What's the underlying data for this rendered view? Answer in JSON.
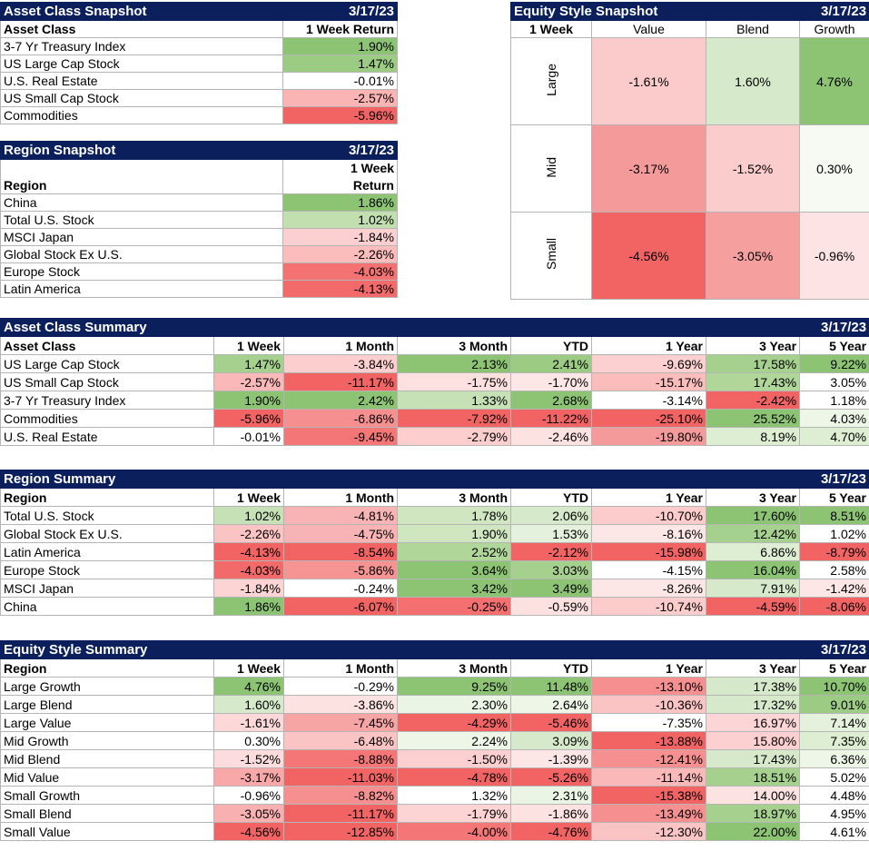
{
  "date": "3/17/23",
  "asset_snapshot": {
    "title": "Asset Class Snapshot",
    "col1": "Asset Class",
    "col2": "1 Week Return",
    "rows": [
      {
        "name": "3-7 Yr Treasury Index",
        "value": "1.90%",
        "color": "#8cc474"
      },
      {
        "name": "US Large Cap Stock",
        "value": "1.47%",
        "color": "#9ccc84"
      },
      {
        "name": "U.S. Real Estate",
        "value": "-0.01%",
        "color": "#ffffff"
      },
      {
        "name": "US Small Cap Stock",
        "value": "-2.57%",
        "color": "#fbb4b4"
      },
      {
        "name": "Commodities",
        "value": "-5.96%",
        "color": "#f26464"
      }
    ]
  },
  "region_snapshot": {
    "title": "Region Snapshot",
    "col1": "Region",
    "col2a": "1 Week",
    "col2b": "Return",
    "rows": [
      {
        "name": "China",
        "value": "1.86%",
        "color": "#8cc474"
      },
      {
        "name": "Total U.S. Stock",
        "value": "1.02%",
        "color": "#c2dfb0"
      },
      {
        "name": "MSCI Japan",
        "value": "-1.84%",
        "color": "#fcd0d0"
      },
      {
        "name": "Global Stock Ex U.S.",
        "value": "-2.26%",
        "color": "#fbbcbc"
      },
      {
        "name": "Europe Stock",
        "value": "-4.03%",
        "color": "#f47272"
      },
      {
        "name": "Latin America",
        "value": "-4.13%",
        "color": "#f26a6a"
      }
    ]
  },
  "style_snapshot": {
    "title": "Equity Style Snapshot",
    "corner": "1 Week",
    "cols": [
      "Value",
      "Blend",
      "Growth"
    ],
    "rows": [
      {
        "label": "Large",
        "cells": [
          {
            "v": "-1.61%",
            "c": "#fbcaca"
          },
          {
            "v": "1.60%",
            "c": "#d6eacb"
          },
          {
            "v": "4.76%",
            "c": "#8cc474"
          }
        ]
      },
      {
        "label": "Mid",
        "cells": [
          {
            "v": "-3.17%",
            "c": "#f59a9a"
          },
          {
            "v": "-1.52%",
            "c": "#fbcccc"
          },
          {
            "v": "0.30%",
            "c": "#f6faf3"
          }
        ]
      },
      {
        "label": "Small",
        "cells": [
          {
            "v": "-4.56%",
            "c": "#f26464"
          },
          {
            "v": "-3.05%",
            "c": "#f59f9f"
          },
          {
            "v": "-0.96%",
            "c": "#fde3e3"
          }
        ]
      }
    ]
  },
  "summary_cols": [
    "1 Week",
    "1 Month",
    "3 Month",
    "YTD",
    "1 Year",
    "3 Year",
    "5 Year"
  ],
  "asset_summary": {
    "title": "Asset Class Summary",
    "first_col": "Asset Class",
    "rows": [
      {
        "name": "US Large Cap Stock",
        "cells": [
          {
            "v": "1.47%",
            "c": "#a6d08e"
          },
          {
            "v": "-3.84%",
            "c": "#fccece"
          },
          {
            "v": "2.13%",
            "c": "#8cc474"
          },
          {
            "v": "2.41%",
            "c": "#9ccc84"
          },
          {
            "v": "-9.69%",
            "c": "#fcd0d0"
          },
          {
            "v": "17.58%",
            "c": "#a6d08e"
          },
          {
            "v": "9.22%",
            "c": "#8cc474"
          }
        ]
      },
      {
        "name": "US Small Cap Stock",
        "cells": [
          {
            "v": "-2.57%",
            "c": "#fbb8b8"
          },
          {
            "v": "-11.17%",
            "c": "#f26464"
          },
          {
            "v": "-1.75%",
            "c": "#fde0e0"
          },
          {
            "v": "-1.70%",
            "c": "#fde6e6"
          },
          {
            "v": "-15.17%",
            "c": "#fbbcbc"
          },
          {
            "v": "17.43%",
            "c": "#b0d69a"
          },
          {
            "v": "3.05%",
            "c": "#ffffff"
          }
        ]
      },
      {
        "name": "3-7 Yr Treasury Index",
        "cells": [
          {
            "v": "1.90%",
            "c": "#8cc474"
          },
          {
            "v": "2.42%",
            "c": "#8cc474"
          },
          {
            "v": "1.33%",
            "c": "#c6e1b6"
          },
          {
            "v": "2.68%",
            "c": "#8cc474"
          },
          {
            "v": "-3.14%",
            "c": "#ffffff"
          },
          {
            "v": "-2.42%",
            "c": "#f26464"
          },
          {
            "v": "1.18%",
            "c": "#ffffff"
          }
        ]
      },
      {
        "name": "Commodities",
        "cells": [
          {
            "v": "-5.96%",
            "c": "#f26464"
          },
          {
            "v": "-6.86%",
            "c": "#f69090"
          },
          {
            "v": "-7.92%",
            "c": "#f26464"
          },
          {
            "v": "-11.22%",
            "c": "#f26464"
          },
          {
            "v": "-25.10%",
            "c": "#f26464"
          },
          {
            "v": "25.52%",
            "c": "#8cc474"
          },
          {
            "v": "4.03%",
            "c": "#eef6e8"
          }
        ]
      },
      {
        "name": "U.S. Real Estate",
        "cells": [
          {
            "v": "-0.01%",
            "c": "#ffffff"
          },
          {
            "v": "-9.45%",
            "c": "#f47676"
          },
          {
            "v": "-2.79%",
            "c": "#fccece"
          },
          {
            "v": "-2.46%",
            "c": "#fde2e2"
          },
          {
            "v": "-19.80%",
            "c": "#f59a9a"
          },
          {
            "v": "8.19%",
            "c": "#ddeed3"
          },
          {
            "v": "4.70%",
            "c": "#ddeed3"
          }
        ]
      }
    ]
  },
  "region_summary": {
    "title": "Region Summary",
    "first_col": "Region",
    "rows": [
      {
        "name": "Total U.S. Stock",
        "cells": [
          {
            "v": "1.02%",
            "c": "#c6e1b6"
          },
          {
            "v": "-4.81%",
            "c": "#f8b4b4"
          },
          {
            "v": "1.78%",
            "c": "#cfe6c1"
          },
          {
            "v": "2.06%",
            "c": "#d6eacb"
          },
          {
            "v": "-10.70%",
            "c": "#fccccc"
          },
          {
            "v": "17.60%",
            "c": "#8cc474"
          },
          {
            "v": "8.51%",
            "c": "#8cc474"
          }
        ]
      },
      {
        "name": "Global Stock Ex U.S.",
        "cells": [
          {
            "v": "-2.26%",
            "c": "#fbc4c4"
          },
          {
            "v": "-4.75%",
            "c": "#f8b4b4"
          },
          {
            "v": "1.90%",
            "c": "#cfe6c1"
          },
          {
            "v": "1.53%",
            "c": "#e4f1dc"
          },
          {
            "v": "-8.16%",
            "c": "#fde6e6"
          },
          {
            "v": "12.42%",
            "c": "#a6d08e"
          },
          {
            "v": "1.02%",
            "c": "#ffffff"
          }
        ]
      },
      {
        "name": "Latin America",
        "cells": [
          {
            "v": "-4.13%",
            "c": "#f26464"
          },
          {
            "v": "-8.54%",
            "c": "#f26464"
          },
          {
            "v": "2.52%",
            "c": "#b0d69a"
          },
          {
            "v": "-2.12%",
            "c": "#f26464"
          },
          {
            "v": "-15.98%",
            "c": "#f26464"
          },
          {
            "v": "6.86%",
            "c": "#ddeed3"
          },
          {
            "v": "-8.79%",
            "c": "#f26464"
          }
        ]
      },
      {
        "name": "Europe Stock",
        "cells": [
          {
            "v": "-4.03%",
            "c": "#f26a6a"
          },
          {
            "v": "-5.86%",
            "c": "#f69494"
          },
          {
            "v": "3.64%",
            "c": "#8cc474"
          },
          {
            "v": "3.03%",
            "c": "#a6d08e"
          },
          {
            "v": "-4.15%",
            "c": "#ffffff"
          },
          {
            "v": "16.04%",
            "c": "#8cc474"
          },
          {
            "v": "2.58%",
            "c": "#ffffff"
          }
        ]
      },
      {
        "name": "MSCI Japan",
        "cells": [
          {
            "v": "-1.84%",
            "c": "#fcd4d4"
          },
          {
            "v": "-0.24%",
            "c": "#ffffff"
          },
          {
            "v": "3.42%",
            "c": "#8cc474"
          },
          {
            "v": "3.49%",
            "c": "#8cc474"
          },
          {
            "v": "-8.26%",
            "c": "#fde6e6"
          },
          {
            "v": "7.91%",
            "c": "#d6eacb"
          },
          {
            "v": "-1.42%",
            "c": "#fde6e6"
          }
        ]
      },
      {
        "name": "China",
        "cells": [
          {
            "v": "1.86%",
            "c": "#8cc474"
          },
          {
            "v": "-6.07%",
            "c": "#f26464"
          },
          {
            "v": "-0.25%",
            "c": "#f47070"
          },
          {
            "v": "-0.59%",
            "c": "#fde0e0"
          },
          {
            "v": "-10.74%",
            "c": "#fccccc"
          },
          {
            "v": "-4.59%",
            "c": "#f26464"
          },
          {
            "v": "-8.06%",
            "c": "#f26464"
          }
        ]
      }
    ]
  },
  "style_summary": {
    "title": "Equity Style Summary",
    "first_col": "Region",
    "rows": [
      {
        "name": "Large Growth",
        "cells": [
          {
            "v": "4.76%",
            "c": "#8cc474"
          },
          {
            "v": "-0.29%",
            "c": "#ffffff"
          },
          {
            "v": "9.25%",
            "c": "#8cc474"
          },
          {
            "v": "11.48%",
            "c": "#8cc474"
          },
          {
            "v": "-13.10%",
            "c": "#f69090"
          },
          {
            "v": "17.38%",
            "c": "#d6eacb"
          },
          {
            "v": "10.70%",
            "c": "#8cc474"
          }
        ]
      },
      {
        "name": "Large Blend",
        "cells": [
          {
            "v": "1.60%",
            "c": "#d6eacb"
          },
          {
            "v": "-3.86%",
            "c": "#fde2e2"
          },
          {
            "v": "2.30%",
            "c": "#ebf5e5"
          },
          {
            "v": "2.64%",
            "c": "#eef6e8"
          },
          {
            "v": "-10.36%",
            "c": "#fbc4c4"
          },
          {
            "v": "17.32%",
            "c": "#d6eacb"
          },
          {
            "v": "9.01%",
            "c": "#9ccc84"
          }
        ]
      },
      {
        "name": "Large Value",
        "cells": [
          {
            "v": "-1.61%",
            "c": "#fcd8d8"
          },
          {
            "v": "-7.45%",
            "c": "#f7a4a4"
          },
          {
            "v": "-4.29%",
            "c": "#f26464"
          },
          {
            "v": "-5.46%",
            "c": "#f26464"
          },
          {
            "v": "-7.35%",
            "c": "#ffffff"
          },
          {
            "v": "16.97%",
            "c": "#fcd6d6"
          },
          {
            "v": "7.14%",
            "c": "#e4f1dc"
          }
        ]
      },
      {
        "name": "Mid Growth",
        "cells": [
          {
            "v": "0.30%",
            "c": "#ffffff"
          },
          {
            "v": "-6.48%",
            "c": "#fbc4c4"
          },
          {
            "v": "2.24%",
            "c": "#eef6e8"
          },
          {
            "v": "3.09%",
            "c": "#d6eacb"
          },
          {
            "v": "-13.88%",
            "c": "#f26464"
          },
          {
            "v": "15.80%",
            "c": "#fcd0d0"
          },
          {
            "v": "7.35%",
            "c": "#ddeed3"
          }
        ]
      },
      {
        "name": "Mid Blend",
        "cells": [
          {
            "v": "-1.52%",
            "c": "#fcdcdc"
          },
          {
            "v": "-8.88%",
            "c": "#f47676"
          },
          {
            "v": "-1.50%",
            "c": "#fcd0d0"
          },
          {
            "v": "-1.39%",
            "c": "#fde6e6"
          },
          {
            "v": "-12.41%",
            "c": "#f69090"
          },
          {
            "v": "17.43%",
            "c": "#d6eacb"
          },
          {
            "v": "6.36%",
            "c": "#eef6e8"
          }
        ]
      },
      {
        "name": "Mid Value",
        "cells": [
          {
            "v": "-3.17%",
            "c": "#f8a8a8"
          },
          {
            "v": "-11.03%",
            "c": "#f26464"
          },
          {
            "v": "-4.78%",
            "c": "#f26464"
          },
          {
            "v": "-5.26%",
            "c": "#f26464"
          },
          {
            "v": "-11.14%",
            "c": "#fbb8b8"
          },
          {
            "v": "18.51%",
            "c": "#a6d08e"
          },
          {
            "v": "5.02%",
            "c": "#ffffff"
          }
        ]
      },
      {
        "name": "Small Growth",
        "cells": [
          {
            "v": "-0.96%",
            "c": "#ffffff"
          },
          {
            "v": "-8.82%",
            "c": "#f69090"
          },
          {
            "v": "1.32%",
            "c": "#ffffff"
          },
          {
            "v": "2.31%",
            "c": "#ebf5e5"
          },
          {
            "v": "-15.38%",
            "c": "#f26464"
          },
          {
            "v": "14.00%",
            "c": "#fde2e2"
          },
          {
            "v": "4.48%",
            "c": "#ffffff"
          }
        ]
      },
      {
        "name": "Small Blend",
        "cells": [
          {
            "v": "-3.05%",
            "c": "#f9b0b0"
          },
          {
            "v": "-11.17%",
            "c": "#f26464"
          },
          {
            "v": "-1.79%",
            "c": "#fcd4d4"
          },
          {
            "v": "-1.86%",
            "c": "#fde2e2"
          },
          {
            "v": "-13.49%",
            "c": "#f69090"
          },
          {
            "v": "18.97%",
            "c": "#a6d08e"
          },
          {
            "v": "4.95%",
            "c": "#ffffff"
          }
        ]
      },
      {
        "name": "Small Value",
        "cells": [
          {
            "v": "-4.56%",
            "c": "#f26464"
          },
          {
            "v": "-12.85%",
            "c": "#f26464"
          },
          {
            "v": "-4.00%",
            "c": "#f47676"
          },
          {
            "v": "-4.76%",
            "c": "#f26464"
          },
          {
            "v": "-12.30%",
            "c": "#fbc4c4"
          },
          {
            "v": "22.00%",
            "c": "#8cc474"
          },
          {
            "v": "4.61%",
            "c": "#ffffff"
          }
        ]
      }
    ]
  }
}
